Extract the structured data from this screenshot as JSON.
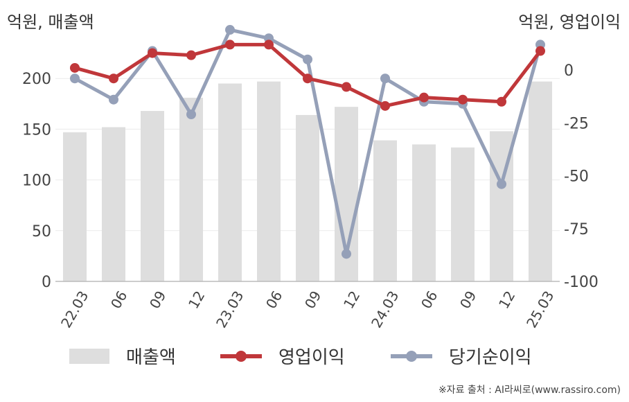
{
  "units": {
    "left": "억원, 매출액",
    "right": "억원, 영업이익"
  },
  "source": "※자료 출처 : AI라씨로(www.rassiro.com)",
  "chart_data": {
    "type": "bar+line",
    "categories": [
      "22.03",
      "06",
      "09",
      "12",
      "23.03",
      "06",
      "09",
      "12",
      "24.03",
      "06",
      "09",
      "12",
      "25.03"
    ],
    "left_axis": {
      "ticks": [
        0,
        50,
        100,
        150,
        200
      ],
      "ylim": [
        0,
        250
      ]
    },
    "right_axis": {
      "ticks": [
        0,
        -25,
        -50,
        -75,
        -100
      ],
      "ylim": [
        -100,
        20
      ]
    },
    "series": [
      {
        "name": "매출액",
        "type": "bar",
        "axis": "left",
        "color": "#dedede",
        "values": [
          147,
          152,
          168,
          181,
          195,
          197,
          164,
          172,
          139,
          135,
          132,
          148,
          197
        ]
      },
      {
        "name": "영업이익",
        "type": "line",
        "axis": "right",
        "color": "#c0373a",
        "values": [
          1,
          -4,
          8,
          7,
          12,
          12,
          -4,
          -8,
          -17,
          -13,
          -14,
          -15,
          9
        ]
      },
      {
        "name": "당기순이익",
        "type": "line",
        "axis": "right",
        "color": "#95a0b8",
        "values": [
          -4,
          -14,
          9,
          -21,
          19,
          15,
          5,
          -87,
          -4,
          -15,
          -16,
          -54,
          12
        ]
      }
    ],
    "legend": "bottom",
    "grid": true
  }
}
